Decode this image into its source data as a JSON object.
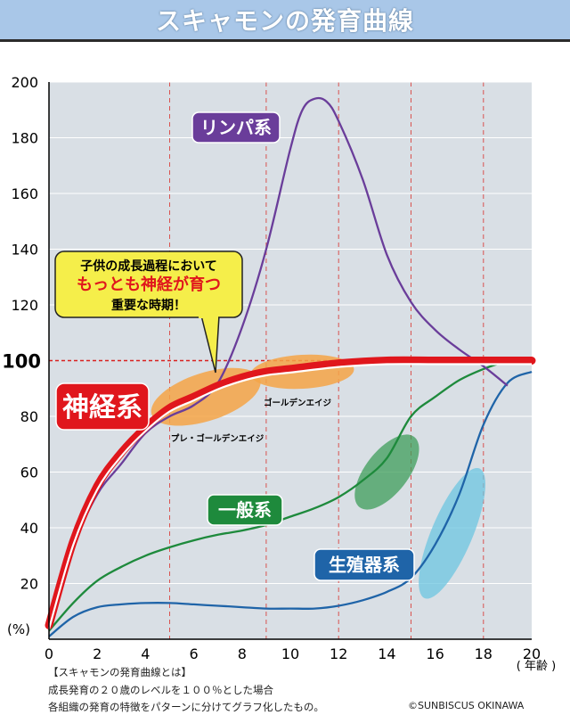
{
  "title": "スキャモンの発育曲線",
  "chart_data": {
    "type": "line",
    "xlim": [
      0,
      20
    ],
    "ylim": [
      0,
      200
    ],
    "x_ticks": [
      "0",
      "2",
      "4",
      "6",
      "8",
      "10",
      "12",
      "14",
      "16",
      "18",
      "20"
    ],
    "y_ticks": [
      "20",
      "40",
      "60",
      "80",
      "100",
      "120",
      "140",
      "160",
      "180",
      "200"
    ],
    "y_unit": "(%)",
    "x_unit": "( 年齢 )",
    "reference_line": 100,
    "vertical_markers": [
      5,
      9,
      12,
      15,
      18
    ],
    "series": [
      {
        "name": "リンパ系",
        "color": "#6a3d9a",
        "x": [
          0,
          1,
          2,
          3,
          4,
          5,
          6,
          7,
          8,
          9,
          10,
          10.5,
          11,
          11.5,
          12,
          13,
          14,
          15,
          16,
          17,
          18,
          19
        ],
        "y": [
          5,
          33,
          52,
          63,
          74,
          80,
          84,
          92,
          112,
          140,
          176,
          190,
          194,
          193,
          186,
          165,
          138,
          121,
          111,
          104,
          98,
          91
        ]
      },
      {
        "name": "神経系",
        "color": "#e0161c",
        "x": [
          0,
          1,
          2,
          3,
          4,
          5,
          6,
          7,
          8,
          9,
          10,
          12,
          14,
          16,
          18,
          20
        ],
        "y": [
          5,
          35,
          55,
          67,
          76,
          83,
          87,
          91,
          94,
          96,
          97,
          99,
          100,
          100,
          100,
          100
        ]
      },
      {
        "name": "一般系",
        "color": "#1e8a3c",
        "x": [
          0,
          1,
          2,
          3,
          4,
          5,
          6,
          7,
          8,
          9,
          10,
          11,
          12,
          13,
          14,
          15,
          16,
          17,
          18,
          19
        ],
        "y": [
          3,
          13,
          21,
          26,
          30,
          33,
          35.5,
          37.5,
          39,
          41,
          44,
          47,
          51,
          57,
          65,
          80,
          87,
          93,
          97,
          100
        ]
      },
      {
        "name": "生殖器系",
        "color": "#1f64a8",
        "x": [
          0,
          1,
          2,
          3,
          4,
          5,
          6,
          7,
          8,
          9,
          10,
          11,
          12,
          13,
          14,
          15,
          16,
          17,
          18,
          19,
          20
        ],
        "y": [
          1,
          8,
          11.5,
          12.5,
          13,
          13,
          12.5,
          12,
          11.5,
          11,
          11,
          11,
          12,
          14,
          17,
          22,
          34,
          52,
          77,
          92,
          96
        ]
      }
    ],
    "labels": {
      "lymph": "リンパ系",
      "neural": "神経系",
      "general": "一般系",
      "reproductive": "生殖器系",
      "pre_golden": "プレ・ゴールデンエイジ",
      "golden": "ゴールデンエイジ"
    },
    "callout": {
      "line1": "子供の成長過程において",
      "line2": "もっとも神経が育つ",
      "line3": "重要な時期！"
    }
  },
  "footer": {
    "line1": "【スキャモンの発育曲線とは】",
    "line2": "成長発育の２０歳のレベルを１００％とした場合",
    "line3": "各組織の発育の特徴をパターンに分けてグラフ化したもの。",
    "credit": "©SUNBISCUS OKINAWA"
  }
}
